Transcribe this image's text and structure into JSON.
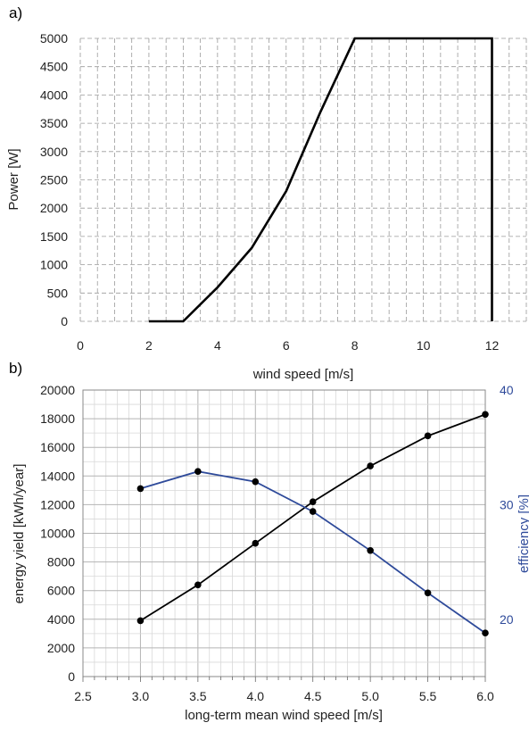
{
  "figure": {
    "label_a": "a)",
    "label_b": "b)"
  },
  "chart_data": [
    {
      "panel": "a)",
      "type": "line",
      "xlabel": "wind speed  [m/s]",
      "ylabel": "Power [W]",
      "xlim": [
        0,
        13
      ],
      "ylim": [
        0,
        5000
      ],
      "xticks": [
        0,
        2,
        4,
        6,
        8,
        10,
        12
      ],
      "yticks": [
        0,
        500,
        1000,
        1500,
        2000,
        2500,
        3000,
        3500,
        4000,
        4500,
        5000
      ],
      "grid": true,
      "x": [
        2,
        3,
        4,
        5,
        6,
        7,
        8,
        12,
        12
      ],
      "y": [
        0,
        0,
        600,
        1300,
        2300,
        3700,
        5000,
        5000,
        0
      ],
      "color": "#000000"
    },
    {
      "panel": "b)",
      "type": "line",
      "xlabel": "long-term mean wind speed [m/s]",
      "ylabel": "energy yield [kWh/year]",
      "y2label": "efficiency [%]",
      "xlim": [
        2.5,
        6.0
      ],
      "ylim": [
        0,
        20000
      ],
      "y2lim": [
        15,
        40
      ],
      "xticks": [
        "2.5",
        "3.0",
        "3.5",
        "4.0",
        "4.5",
        "5.0",
        "5.5",
        "6.0"
      ],
      "yticks": [
        "0",
        "2000",
        "4000",
        "6000",
        "8000",
        "10000",
        "12000",
        "14000",
        "16000",
        "18000",
        "20000"
      ],
      "y2ticks": [
        "20",
        "30",
        "40"
      ],
      "grid": true,
      "series": [
        {
          "axis": "left",
          "color": "#000000",
          "x": [
            3.0,
            3.5,
            4.0,
            4.5,
            5.0,
            5.5,
            6.0
          ],
          "y": [
            3900,
            6400,
            9300,
            12200,
            14700,
            16800,
            18300
          ]
        },
        {
          "axis": "right",
          "color": "#2e4a9a",
          "x": [
            3.0,
            3.5,
            4.0,
            4.5,
            5.0,
            5.5,
            6.0
          ],
          "y": [
            31.4,
            32.9,
            32.0,
            29.4,
            26.0,
            22.3,
            18.8
          ]
        }
      ]
    }
  ]
}
